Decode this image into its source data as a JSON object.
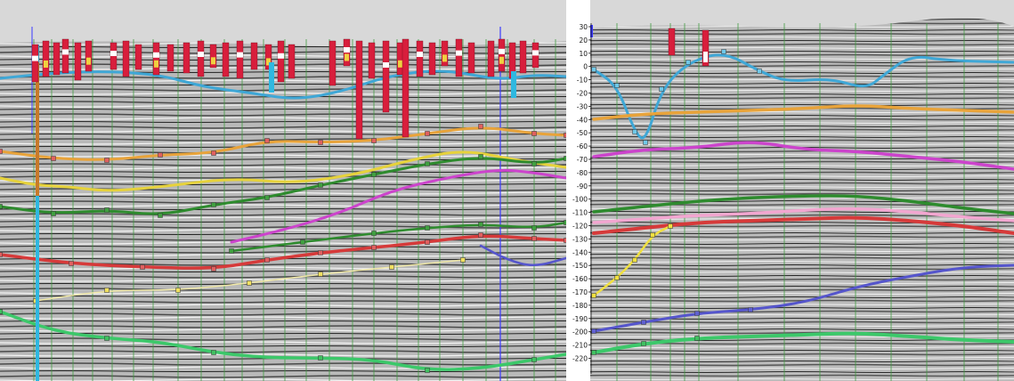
{
  "right_panel": {
    "depth_ticks": [
      "30",
      "20",
      "10",
      "0",
      "-10",
      "-20",
      "-30",
      "-40",
      "-50",
      "-60",
      "-70",
      "-80",
      "-90",
      "-100",
      "-110",
      "-120",
      "-130",
      "-140",
      "-150",
      "-160",
      "-170",
      "-180",
      "-190",
      "-200",
      "-210",
      "-220"
    ]
  },
  "colors": {
    "background_sky": "#d8d8d8",
    "horizon_cyan": "#3fa7d6",
    "horizon_orange": "#e8a33a",
    "horizon_yellow": "#e6d23c",
    "horizon_magenta": "#cc44cc",
    "horizon_dark_green": "#2e8b2e",
    "horizon_pink": "#f2a6d0",
    "horizon_red": "#d63a3a",
    "horizon_blue": "#5555cc",
    "horizon_light_green": "#3cc86a",
    "well_line_green": "#3a9a3a",
    "well_track_red": "#d81e3c",
    "well_track_blue": "#2fb8e0"
  }
}
